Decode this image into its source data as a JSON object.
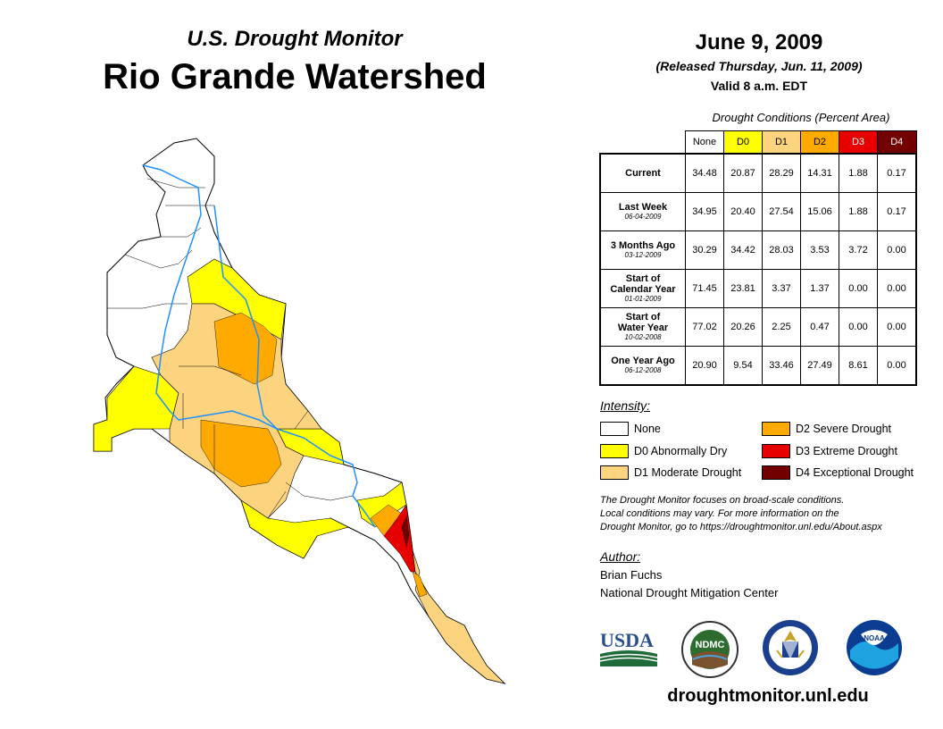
{
  "header": {
    "subtitle": "U.S. Drought Monitor",
    "title": "Rio Grande Watershed",
    "date": "June 9, 2009",
    "released": "(Released Thursday, Jun. 11, 2009)",
    "valid": "Valid 8 a.m. EDT"
  },
  "table": {
    "caption": "Drought Conditions (Percent Area)",
    "columns": [
      "None",
      "D0",
      "D1",
      "D2",
      "D3",
      "D4"
    ],
    "rows": [
      {
        "label_line1": "Current",
        "label_line2": "",
        "date": "",
        "values": [
          "34.48",
          "20.87",
          "28.29",
          "14.31",
          "1.88",
          "0.17"
        ]
      },
      {
        "label_line1": "Last Week",
        "label_line2": "",
        "date": "06-04-2009",
        "values": [
          "34.95",
          "20.40",
          "27.54",
          "15.06",
          "1.88",
          "0.17"
        ]
      },
      {
        "label_line1": "3 Months Ago",
        "label_line2": "",
        "date": "03-12-2009",
        "values": [
          "30.29",
          "34.42",
          "28.03",
          "3.53",
          "3.72",
          "0.00"
        ]
      },
      {
        "label_line1": "Start of",
        "label_line2": "Calendar Year",
        "date": "01-01-2009",
        "values": [
          "71.45",
          "23.81",
          "3.37",
          "1.37",
          "0.00",
          "0.00"
        ]
      },
      {
        "label_line1": "Start of",
        "label_line2": "Water Year",
        "date": "10-02-2008",
        "values": [
          "77.02",
          "20.26",
          "2.25",
          "0.47",
          "0.00",
          "0.00"
        ]
      },
      {
        "label_line1": "One Year Ago",
        "label_line2": "",
        "date": "06-12-2008",
        "values": [
          "20.90",
          "9.54",
          "33.46",
          "27.49",
          "8.61",
          "0.00"
        ]
      }
    ]
  },
  "legend": {
    "title": "Intensity:",
    "items": [
      {
        "label": "None",
        "color": "#ffffff"
      },
      {
        "label": "D0 Abnormally Dry",
        "color": "#ffff00"
      },
      {
        "label": "D1 Moderate Drought",
        "color": "#fcd37f"
      },
      {
        "label": "D2 Severe Drought",
        "color": "#ffaa00"
      },
      {
        "label": "D3 Extreme Drought",
        "color": "#e60000"
      },
      {
        "label": "D4 Exceptional Drought",
        "color": "#730000"
      }
    ]
  },
  "note": {
    "line1": "The Drought Monitor focuses on broad-scale conditions.",
    "line2": "Local conditions may vary. For more information on the",
    "line3": "Drought Monitor, go to https://droughtmonitor.unl.edu/About.aspx"
  },
  "author": {
    "title": "Author:",
    "name": "Brian Fuchs",
    "org": "National Drought Mitigation Center"
  },
  "logos": {
    "usda": "USDA",
    "ndmc": "NDMC",
    "noaa": "NOAA"
  },
  "website": "droughtmonitor.unl.edu",
  "colors": {
    "none": "#ffffff",
    "d0": "#ffff00",
    "d1": "#fcd37f",
    "d2": "#ffaa00",
    "d3": "#e60000",
    "d4": "#730000",
    "river": "#1e90ff",
    "border": "#000000"
  }
}
